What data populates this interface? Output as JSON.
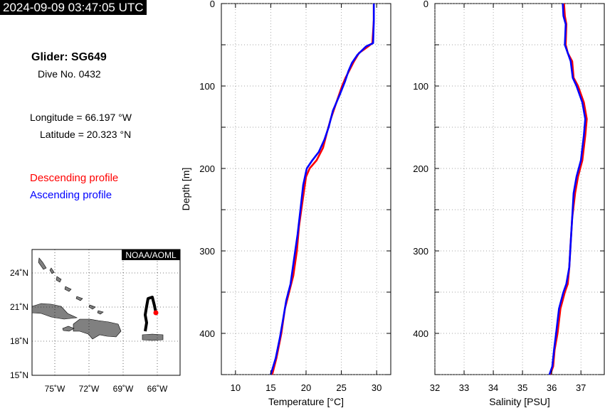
{
  "header": {
    "timestamp": "2024-09-09 03:47:05 UTC"
  },
  "info": {
    "glider": "Glider: SG649",
    "dive": "Dive No. 0432",
    "longitude": "Longitude = 66.197 °W",
    "latitude": "Latitude = 20.323 °N"
  },
  "legend": {
    "descending": "Descending profile",
    "ascending": "Ascending profile"
  },
  "colors": {
    "descending": "#ff0000",
    "ascending": "#0000ff"
  },
  "chart_data": [
    {
      "type": "line",
      "xlabel": "Temperature [°C]",
      "ylabel": "Depth [m]",
      "xlim": [
        8,
        32
      ],
      "ylim": [
        450,
        0
      ],
      "xticks": [
        10,
        15,
        20,
        25,
        30
      ],
      "yticks": [
        0,
        100,
        200,
        300,
        400
      ],
      "grid": true,
      "series": [
        {
          "name": "Descending profile",
          "color": "#ff0000",
          "x": [
            29.6,
            29.6,
            29.4,
            28.8,
            27.5,
            26.8,
            26.2,
            25.6,
            25.1,
            24.3,
            23.5,
            23.0,
            22.4,
            21.5,
            20.5,
            20.0,
            19.5,
            19.0,
            18.7,
            18.2,
            17.6,
            17.0,
            16.5,
            15.8,
            15.2
          ],
          "y": [
            0,
            20,
            48,
            52,
            60,
            70,
            80,
            90,
            100,
            120,
            140,
            155,
            175,
            190,
            200,
            210,
            240,
            270,
            300,
            330,
            350,
            370,
            400,
            430,
            450
          ]
        },
        {
          "name": "Ascending profile",
          "color": "#0000ff",
          "x": [
            29.6,
            29.6,
            29.5,
            28.5,
            27.3,
            26.5,
            26.0,
            25.5,
            24.8,
            23.8,
            23.2,
            22.6,
            21.8,
            20.9,
            20.1,
            19.6,
            19.2,
            18.8,
            18.3,
            17.8,
            17.2,
            16.8,
            16.3,
            15.7,
            15.0
          ],
          "y": [
            0,
            20,
            48,
            52,
            62,
            72,
            82,
            95,
            110,
            130,
            150,
            165,
            180,
            190,
            200,
            220,
            250,
            280,
            310,
            340,
            360,
            380,
            405,
            430,
            450
          ]
        }
      ]
    },
    {
      "type": "line",
      "xlabel": "Salinity [PSU]",
      "ylabel": "",
      "xlim": [
        32,
        37.8
      ],
      "ylim": [
        450,
        0
      ],
      "xticks": [
        32,
        33,
        34,
        35,
        36,
        37
      ],
      "yticks": [
        0,
        100,
        200,
        300,
        400
      ],
      "grid": true,
      "series": [
        {
          "name": "Descending profile",
          "color": "#ff0000",
          "x": [
            36.42,
            36.45,
            36.5,
            36.48,
            36.55,
            36.7,
            36.75,
            36.9,
            37.1,
            37.2,
            37.15,
            37.05,
            36.9,
            36.8,
            36.7,
            36.65,
            36.6,
            36.55,
            36.45,
            36.3,
            36.2,
            36.1,
            36.05,
            35.95
          ],
          "y": [
            0,
            15,
            25,
            50,
            60,
            70,
            90,
            100,
            120,
            140,
            160,
            190,
            210,
            230,
            260,
            290,
            320,
            340,
            350,
            370,
            400,
            420,
            440,
            450
          ]
        },
        {
          "name": "Ascending profile",
          "color": "#0000ff",
          "x": [
            36.38,
            36.4,
            36.48,
            36.45,
            36.55,
            36.65,
            36.72,
            36.85,
            37.05,
            37.15,
            37.1,
            37.0,
            36.85,
            36.75,
            36.7,
            36.65,
            36.6,
            36.5,
            36.4,
            36.25,
            36.15,
            36.08,
            36.02,
            35.92
          ],
          "y": [
            0,
            15,
            25,
            50,
            60,
            70,
            90,
            100,
            120,
            140,
            160,
            190,
            210,
            230,
            260,
            290,
            320,
            340,
            350,
            370,
            400,
            420,
            440,
            450
          ]
        }
      ]
    }
  ],
  "map": {
    "badge": "NOAA/AOML",
    "lon_ticks": [
      "75˚W",
      "72˚W",
      "69˚W",
      "66˚W"
    ],
    "lat_ticks": [
      "24˚N",
      "21˚N",
      "18˚N",
      "15˚N"
    ],
    "track_color": "#000000",
    "position_color": "#ff0000",
    "land_color": "#808080"
  }
}
